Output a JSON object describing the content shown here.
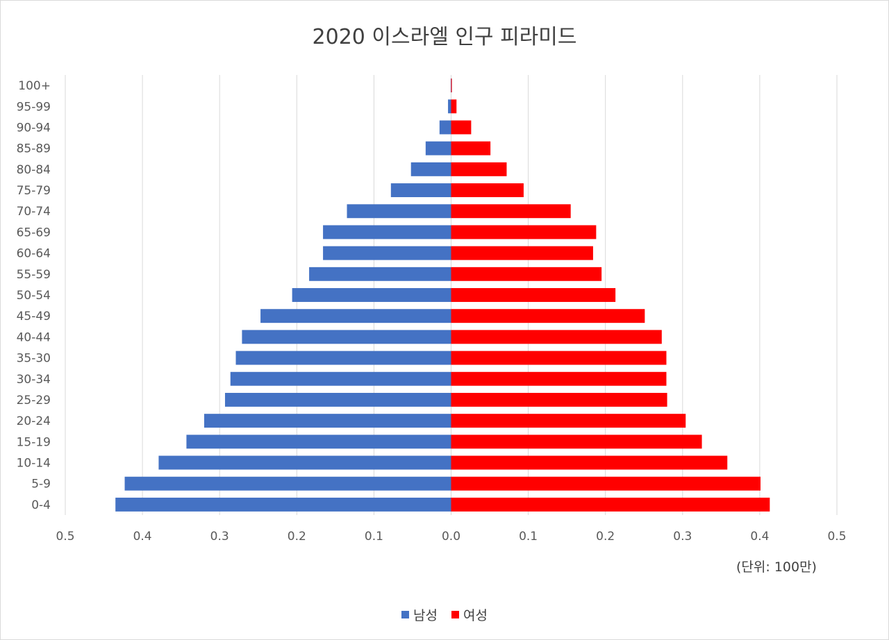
{
  "chart_data": {
    "type": "bar",
    "orientation": "horizontal",
    "layout": "population-pyramid",
    "title": "2020 이스라엘 인구 피라미드",
    "unit_note": "(단위: 100만)",
    "categories": [
      "0-4",
      "5-9",
      "10-14",
      "15-19",
      "20-24",
      "25-29",
      "30-34",
      "35-30",
      "40-44",
      "45-49",
      "50-54",
      "55-59",
      "60-64",
      "65-69",
      "70-74",
      "75-79",
      "80-84",
      "85-89",
      "90-94",
      "95-99",
      "100+"
    ],
    "series": [
      {
        "name": "남성",
        "color": "#4472c4",
        "side": "left",
        "values": [
          0.435,
          0.423,
          0.379,
          0.343,
          0.32,
          0.293,
          0.286,
          0.279,
          0.271,
          0.247,
          0.206,
          0.184,
          0.166,
          0.166,
          0.135,
          0.078,
          0.052,
          0.033,
          0.015,
          0.004,
          0.0005
        ]
      },
      {
        "name": "여성",
        "color": "#ff0000",
        "side": "right",
        "values": [
          0.413,
          0.401,
          0.358,
          0.325,
          0.304,
          0.28,
          0.279,
          0.279,
          0.273,
          0.251,
          0.213,
          0.195,
          0.184,
          0.188,
          0.155,
          0.094,
          0.072,
          0.051,
          0.026,
          0.007,
          0.001
        ]
      }
    ],
    "x_ticks": [
      "0.5",
      "0.4",
      "0.3",
      "0.2",
      "0.1",
      "0.0",
      "0.1",
      "0.2",
      "0.3",
      "0.4",
      "0.5"
    ],
    "xlim": [
      -0.5,
      0.5
    ],
    "grid": true,
    "legend_position": "bottom"
  }
}
